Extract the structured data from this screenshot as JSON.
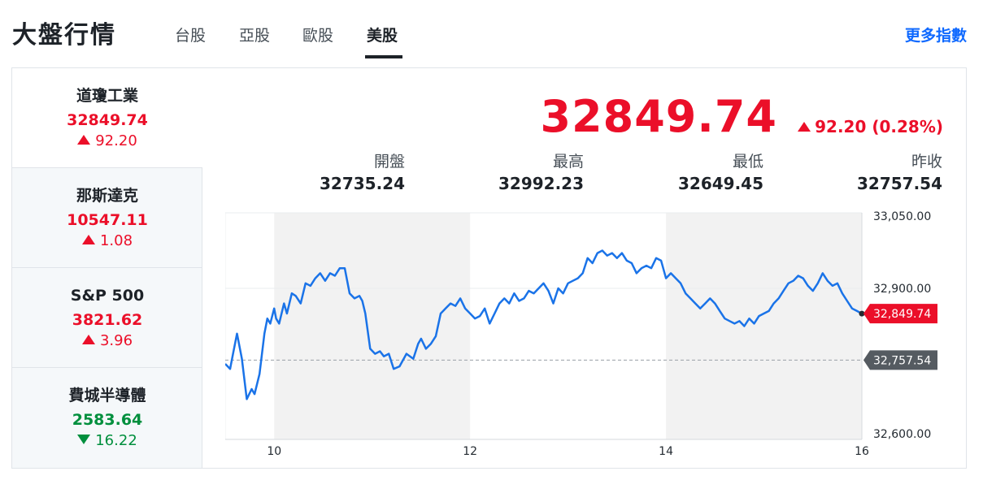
{
  "header": {
    "title": "大盤行情",
    "tabs": [
      {
        "label": "台股",
        "active": false
      },
      {
        "label": "亞股",
        "active": false
      },
      {
        "label": "歐股",
        "active": false
      },
      {
        "label": "美股",
        "active": true
      }
    ],
    "more_link": "更多指數"
  },
  "indices": [
    {
      "name": "道瓊工業",
      "value": "32849.74",
      "change": "92.20",
      "direction": "up"
    },
    {
      "name": "那斯達克",
      "value": "10547.11",
      "change": "1.08",
      "direction": "up"
    },
    {
      "name": "S&P 500",
      "value": "3821.62",
      "change": "3.96",
      "direction": "up"
    },
    {
      "name": "費城半導體",
      "value": "2583.64",
      "change": "16.22",
      "direction": "down"
    }
  ],
  "quote": {
    "price": "32849.74",
    "change": "92.20 (0.28%)",
    "direction": "up"
  },
  "stats": [
    {
      "label": "開盤",
      "value": "32735.24"
    },
    {
      "label": "最高",
      "value": "32992.23"
    },
    {
      "label": "最低",
      "value": "32649.45"
    },
    {
      "label": "昨收",
      "value": "32757.54"
    }
  ],
  "colors": {
    "up": "#eb0f29",
    "down": "#008f3d",
    "line": "#1a73e8",
    "accent_link": "#0f69ff"
  },
  "chart_data": {
    "type": "line",
    "x_tick_labels": [
      "10",
      "12",
      "14",
      "16"
    ],
    "x_ticks": [
      10,
      12,
      14,
      16
    ],
    "xlim": [
      9.5,
      16
    ],
    "ylim": [
      32600,
      33050
    ],
    "y_tick_labels": [
      "33,050.00",
      "32,900.00",
      "32,600.00"
    ],
    "y_ticks": [
      33050,
      32900,
      32600
    ],
    "reference_line": {
      "value": 32757.54,
      "label": "32,757.54"
    },
    "last_price_label": "32,849.74",
    "last_value": 32849.74,
    "shaded_bands": [
      [
        10,
        12
      ],
      [
        14,
        16
      ]
    ],
    "grid": true,
    "series": [
      {
        "x": [
          9.5,
          9.55,
          9.58,
          9.62,
          9.67,
          9.72,
          9.77,
          9.8,
          9.85,
          9.9,
          9.93,
          9.96,
          10.0,
          10.02,
          10.05,
          10.1,
          10.13,
          10.18,
          10.22,
          10.27,
          10.32,
          10.37,
          10.42,
          10.47,
          10.52,
          10.57,
          10.62,
          10.67,
          10.72,
          10.77,
          10.82,
          10.87,
          10.9,
          10.93,
          10.98,
          11.03,
          11.08,
          11.12,
          11.17,
          11.22,
          11.28,
          11.35,
          11.42,
          11.47,
          11.5,
          11.55,
          11.6,
          11.65,
          11.7,
          11.75,
          11.8,
          11.85,
          11.9,
          11.95,
          12.0,
          12.05,
          12.1,
          12.15,
          12.2,
          12.25,
          12.3,
          12.35,
          12.4,
          12.45,
          12.5,
          12.55,
          12.6,
          12.65,
          12.7,
          12.75,
          12.8,
          12.85,
          12.9,
          12.95,
          13.0,
          13.05,
          13.1,
          13.15,
          13.2,
          13.25,
          13.3,
          13.35,
          13.4,
          13.45,
          13.5,
          13.55,
          13.6,
          13.65,
          13.7,
          13.75,
          13.8,
          13.85,
          13.9,
          13.95,
          14.0,
          14.05,
          14.1,
          14.15,
          14.2,
          14.25,
          14.3,
          14.35,
          14.4,
          14.45,
          14.5,
          14.55,
          14.6,
          14.65,
          14.7,
          14.75,
          14.8,
          14.85,
          14.9,
          14.95,
          15.0,
          15.05,
          15.1,
          15.15,
          15.2,
          15.25,
          15.3,
          15.35,
          15.4,
          15.45,
          15.5,
          15.55,
          15.6,
          15.65,
          15.7,
          15.75,
          15.8,
          15.85,
          15.9,
          15.95,
          16.0
        ],
        "y": [
          32750,
          32740,
          32770,
          32810,
          32760,
          32680,
          32700,
          32690,
          32730,
          32810,
          32840,
          32830,
          32860,
          32840,
          32830,
          32870,
          32850,
          32890,
          32885,
          32870,
          32910,
          32905,
          32920,
          32930,
          32915,
          32930,
          32925,
          32940,
          32940,
          32890,
          32880,
          32885,
          32875,
          32850,
          32780,
          32770,
          32775,
          32765,
          32770,
          32740,
          32745,
          32770,
          32760,
          32790,
          32800,
          32780,
          32790,
          32805,
          32850,
          32860,
          32870,
          32865,
          32880,
          32860,
          32850,
          32840,
          32845,
          32860,
          32830,
          32850,
          32870,
          32880,
          32870,
          32890,
          32875,
          32880,
          32895,
          32890,
          32900,
          32910,
          32895,
          32870,
          32900,
          32890,
          32910,
          32915,
          32920,
          32930,
          32960,
          32950,
          32970,
          32975,
          32965,
          32970,
          32960,
          32970,
          32955,
          32950,
          32930,
          32940,
          32945,
          32940,
          32960,
          32955,
          32920,
          32930,
          32920,
          32910,
          32890,
          32880,
          32870,
          32860,
          32870,
          32880,
          32870,
          32855,
          32840,
          32835,
          32830,
          32835,
          32825,
          32840,
          32830,
          32845,
          32850,
          32855,
          32870,
          32880,
          32895,
          32910,
          32915,
          32925,
          32920,
          32905,
          32895,
          32910,
          32930,
          32915,
          32905,
          32910,
          32890,
          32875,
          32860,
          32855,
          32849.74
        ]
      }
    ]
  }
}
